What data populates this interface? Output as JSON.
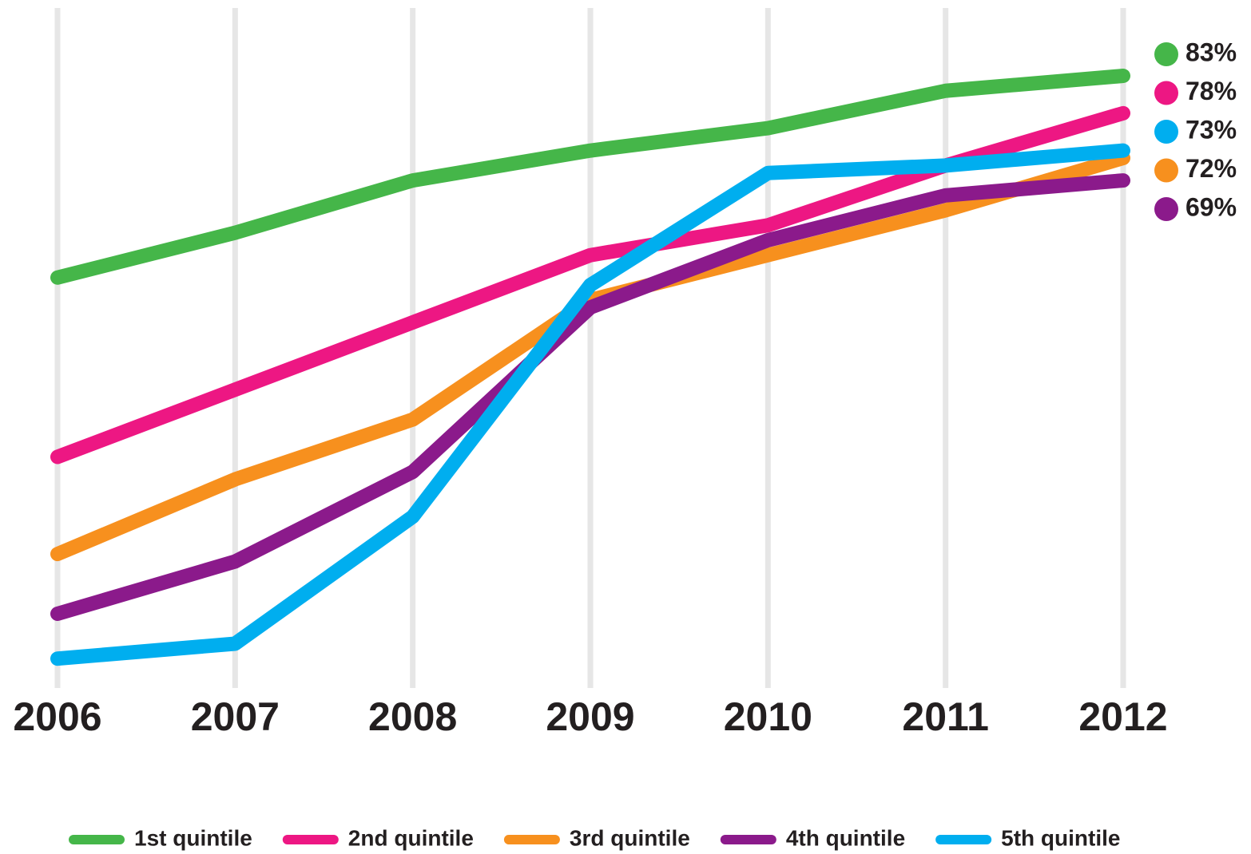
{
  "chart_data": {
    "type": "line",
    "categories": [
      "2006",
      "2007",
      "2008",
      "2009",
      "2010",
      "2011",
      "2012"
    ],
    "series": [
      {
        "name": "1st quintile",
        "color": "#45b649",
        "values": [
          56,
          62,
          69,
          73,
          76,
          81,
          83
        ]
      },
      {
        "name": "2nd quintile",
        "color": "#ed1783",
        "values": [
          32,
          41,
          50,
          59,
          63,
          71,
          78
        ]
      },
      {
        "name": "3rd quintile",
        "color": "#f7901e",
        "values": [
          19,
          29,
          37,
          53,
          59,
          65,
          72
        ]
      },
      {
        "name": "4th quintile",
        "color": "#8b1a8b",
        "values": [
          11,
          18,
          30,
          52,
          61,
          67,
          69
        ]
      },
      {
        "name": "5th quintile",
        "color": "#00aeef",
        "values": [
          5,
          7,
          24,
          55,
          70,
          71,
          73
        ]
      }
    ],
    "end_labels": [
      "83%",
      "78%",
      "73%",
      "72%",
      "69%"
    ],
    "end_label_colors": [
      "#45b649",
      "#ed1783",
      "#00aeef",
      "#f7901e",
      "#8b1a8b"
    ],
    "ylim": [
      0,
      90
    ],
    "grid": true
  }
}
